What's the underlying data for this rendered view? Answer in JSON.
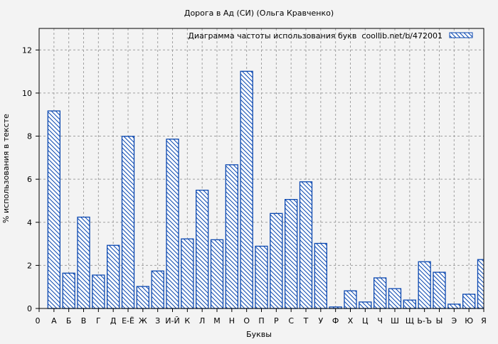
{
  "chart_data": {
    "type": "bar",
    "title": "Дорога в Ад (СИ) (Ольга Кравченко)",
    "xlabel": "Буквы",
    "ylabel": "% использования в тексте",
    "legend": {
      "label": "Диаграмма частоты использования букв  coollib.net/b/472001",
      "placement": "top-right"
    },
    "x_origin_label": "0",
    "categories": [
      "А",
      "Б",
      "В",
      "Г",
      "Д",
      "Е-Ё",
      "Ж",
      "З",
      "И-Й",
      "К",
      "Л",
      "М",
      "Н",
      "О",
      "П",
      "Р",
      "С",
      "Т",
      "У",
      "Ф",
      "Х",
      "Ц",
      "Ч",
      "Ш",
      "Щ",
      "Ь-Ъ",
      "Ы",
      "Э",
      "Ю",
      "Я"
    ],
    "values": [
      9.17,
      1.64,
      4.24,
      1.55,
      2.93,
      7.99,
      1.02,
      1.74,
      7.86,
      3.23,
      5.49,
      3.19,
      6.67,
      11.01,
      2.89,
      4.41,
      5.06,
      5.88,
      3.02,
      0.07,
      0.82,
      0.3,
      1.42,
      0.92,
      0.39,
      2.17,
      1.68,
      0.2,
      0.66,
      2.27
    ],
    "ylim": [
      0,
      13
    ],
    "yticks": [
      0,
      2,
      4,
      6,
      8,
      10,
      12
    ],
    "grid": true,
    "bar_style": "diagonal-hatch",
    "colors": {
      "bar": "#0a47b0",
      "grid": "#a0a0a0"
    }
  }
}
